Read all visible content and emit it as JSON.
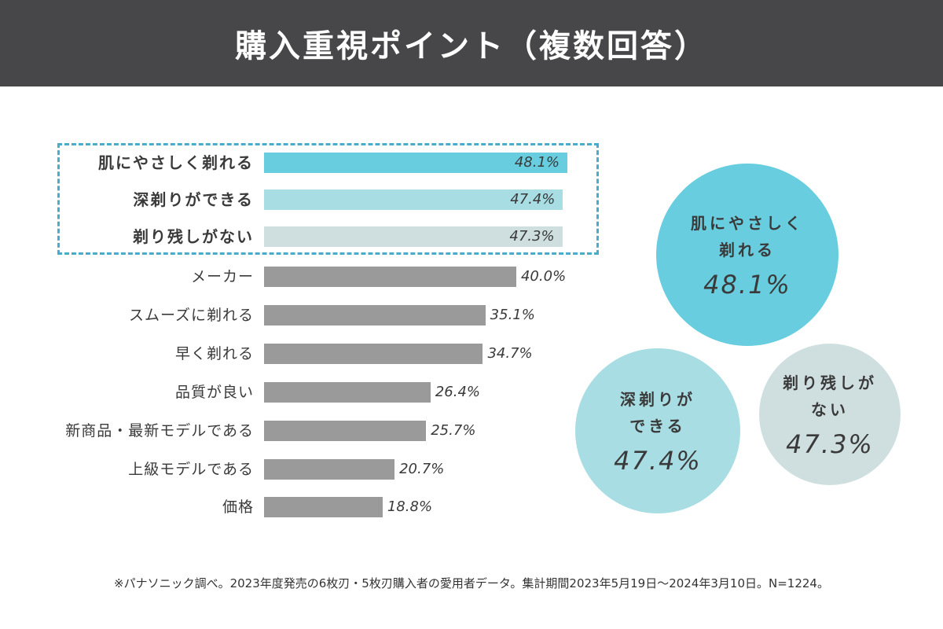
{
  "header": {
    "title": "購入重視ポイント（複数回答）"
  },
  "colors": {
    "header_bg": "#474749",
    "highlight_1": "#68cedf",
    "highlight_2": "#a8dde3",
    "highlight_3": "#cfdfe0",
    "bar_default": "#9a9a9a",
    "dashed_border": "#4aaccb"
  },
  "chart_data": {
    "type": "bar",
    "orientation": "horizontal",
    "title": "購入重視ポイント（複数回答）",
    "xlabel": "",
    "ylabel": "",
    "xlim": [
      0,
      50
    ],
    "grid": false,
    "categories": [
      "肌にやさしく剃れる",
      "深剃りができる",
      "剃り残しがない",
      "メーカー",
      "スムーズに剃れる",
      "早く剃れる",
      "品質が良い",
      "新商品・最新モデルである",
      "上級モデルである",
      "価格"
    ],
    "values": [
      48.1,
      47.4,
      47.3,
      40.0,
      35.1,
      34.7,
      26.4,
      25.7,
      20.7,
      18.8
    ],
    "value_labels": [
      "48.1%",
      "47.4%",
      "47.3%",
      "40.0%",
      "35.1%",
      "34.7%",
      "26.4%",
      "25.7%",
      "20.7%",
      "18.8%"
    ],
    "highlighted": [
      true,
      true,
      true,
      false,
      false,
      false,
      false,
      false,
      false,
      false
    ],
    "unit": "%"
  },
  "circles": [
    {
      "lines": [
        "肌にやさしく",
        "剃れる"
      ],
      "value": "48.1%"
    },
    {
      "lines": [
        "深剃りが",
        "できる"
      ],
      "value": "47.4%"
    },
    {
      "lines": [
        "剃り残しが",
        "ない"
      ],
      "value": "47.3%"
    }
  ],
  "footnote": "※パナソニック調べ。2023年度発売の6枚刃・5枚刃購入者の愛用者データ。集計期間2023年5月19日～2024年3月10日。N=1224。"
}
